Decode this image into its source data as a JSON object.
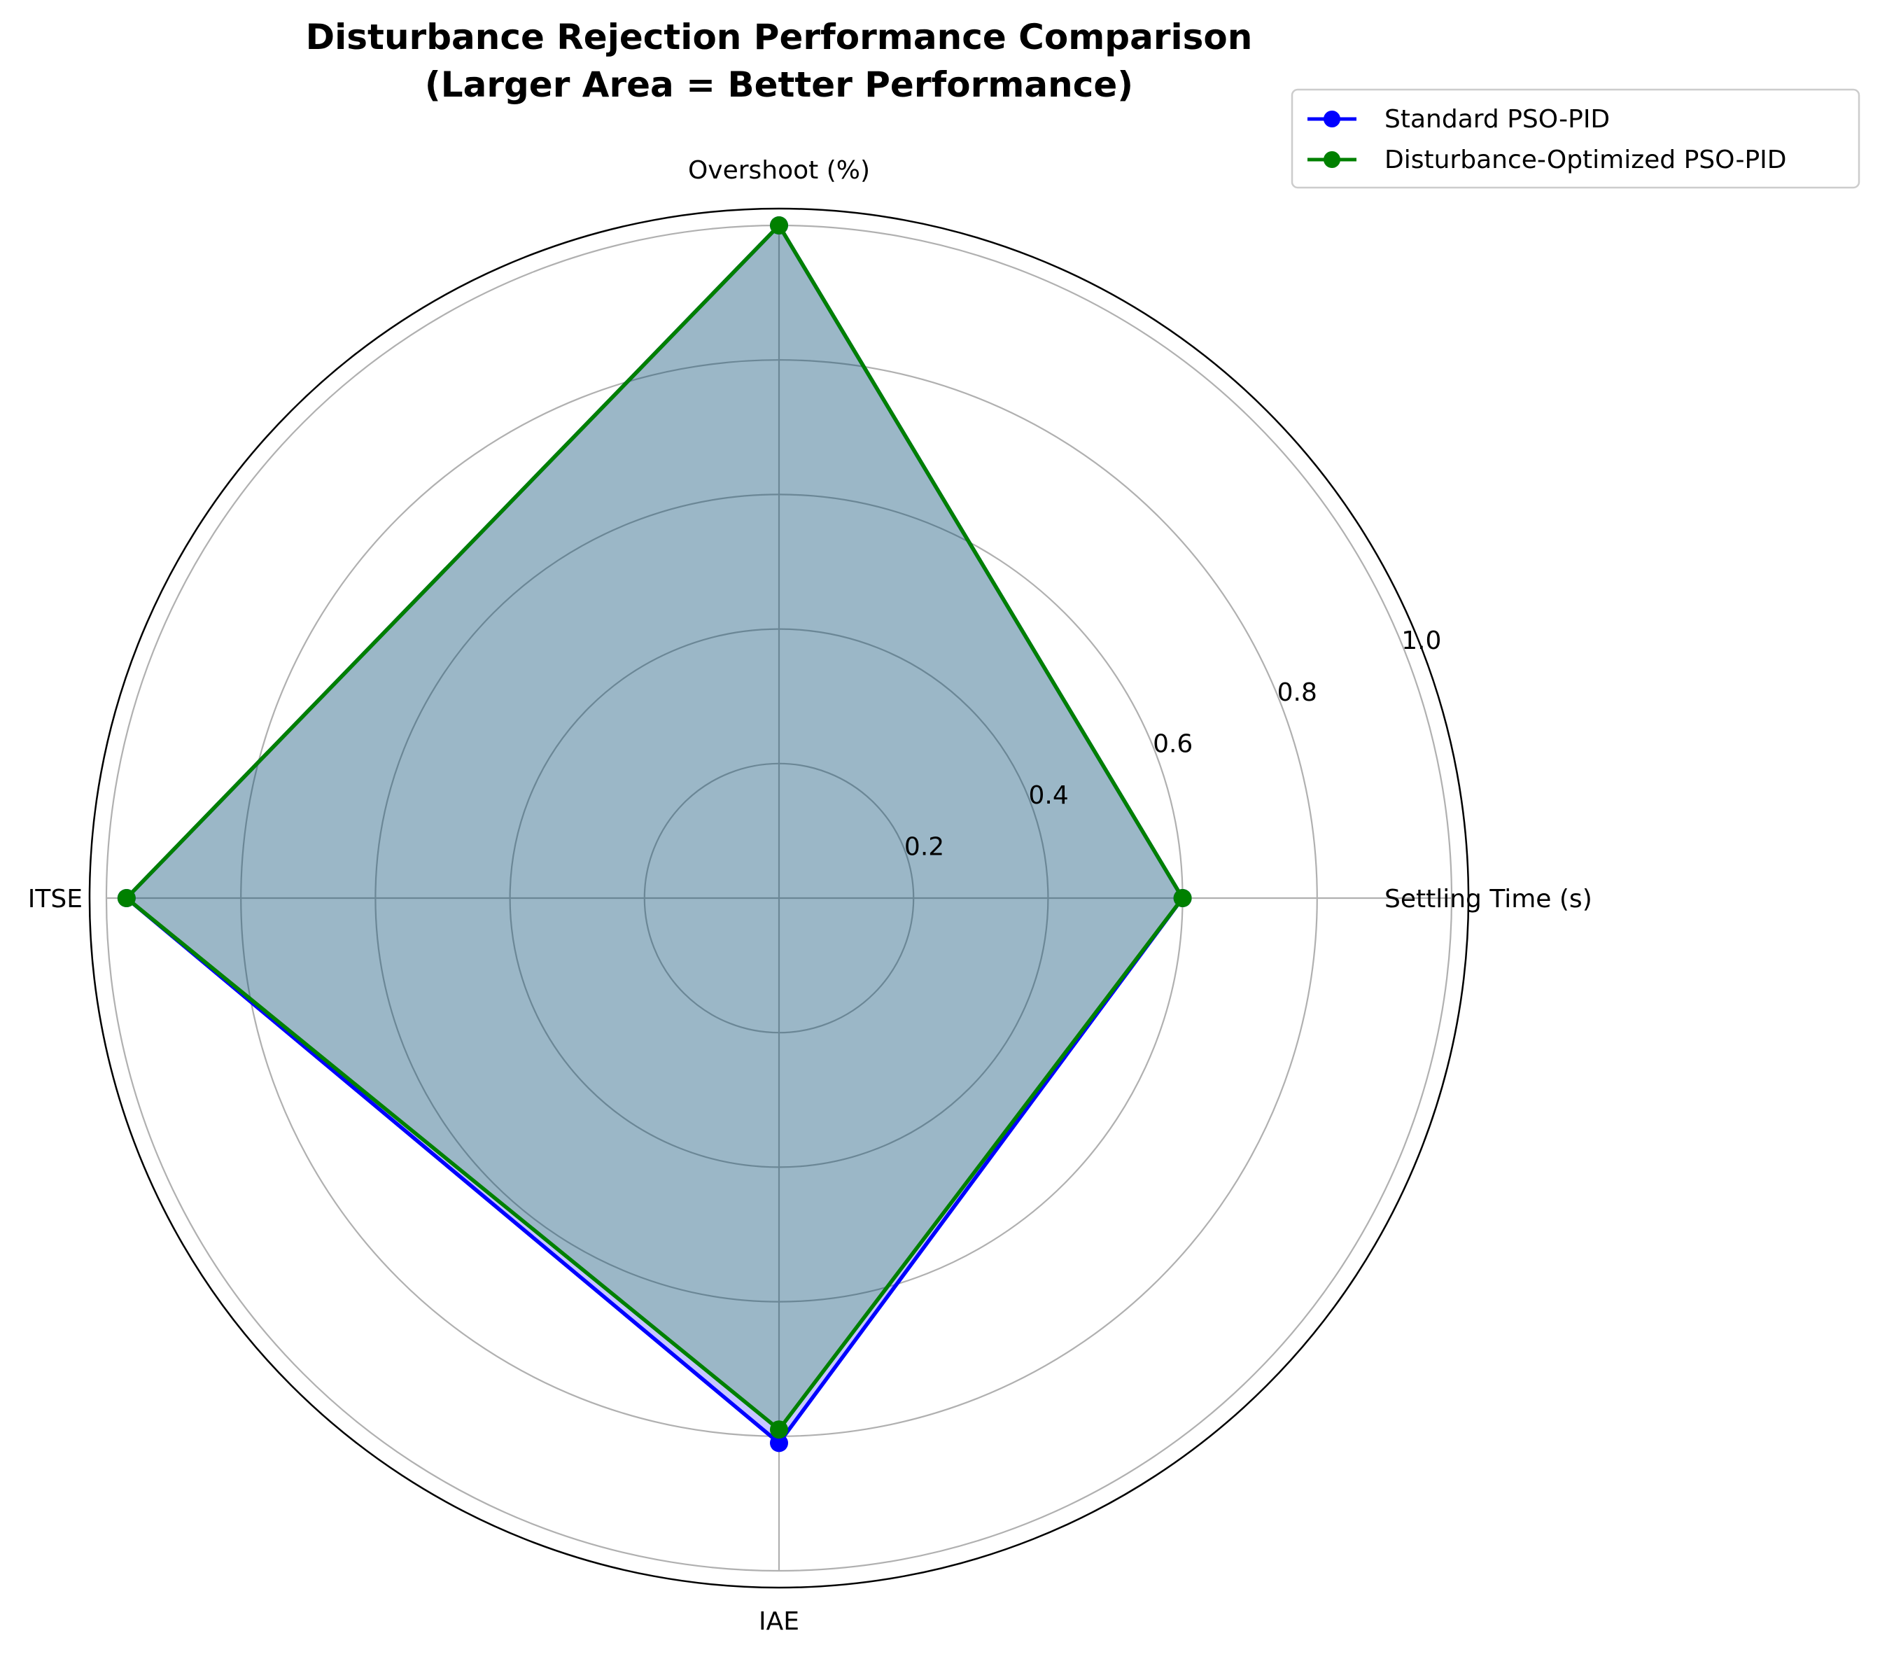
{
  "chart_data": {
    "type": "radar",
    "title_line1": "Disturbance Rejection Performance Comparison",
    "title_line2": "(Larger Area = Better Performance)",
    "categories": [
      "Settling Time (s)",
      "Overshoot (%)",
      "ITSE",
      "IAE"
    ],
    "rlim": [
      0,
      1.0
    ],
    "rticks": [
      0.2,
      0.4,
      0.6,
      0.8,
      1.0
    ],
    "rtick_labels": [
      "0.2",
      "0.4",
      "0.6",
      "0.8",
      "1.0"
    ],
    "grid": true,
    "legend_position": "upper-right",
    "series": [
      {
        "name": "Standard PSO-PID",
        "color": "#0000ff",
        "values": [
          0.6,
          1.0,
          0.97,
          0.81
        ]
      },
      {
        "name": "Disturbance-Optimized PSO-PID",
        "color": "#008000",
        "values": [
          0.6,
          1.0,
          0.97,
          0.79
        ]
      }
    ],
    "fill_color": "#91afbf"
  }
}
